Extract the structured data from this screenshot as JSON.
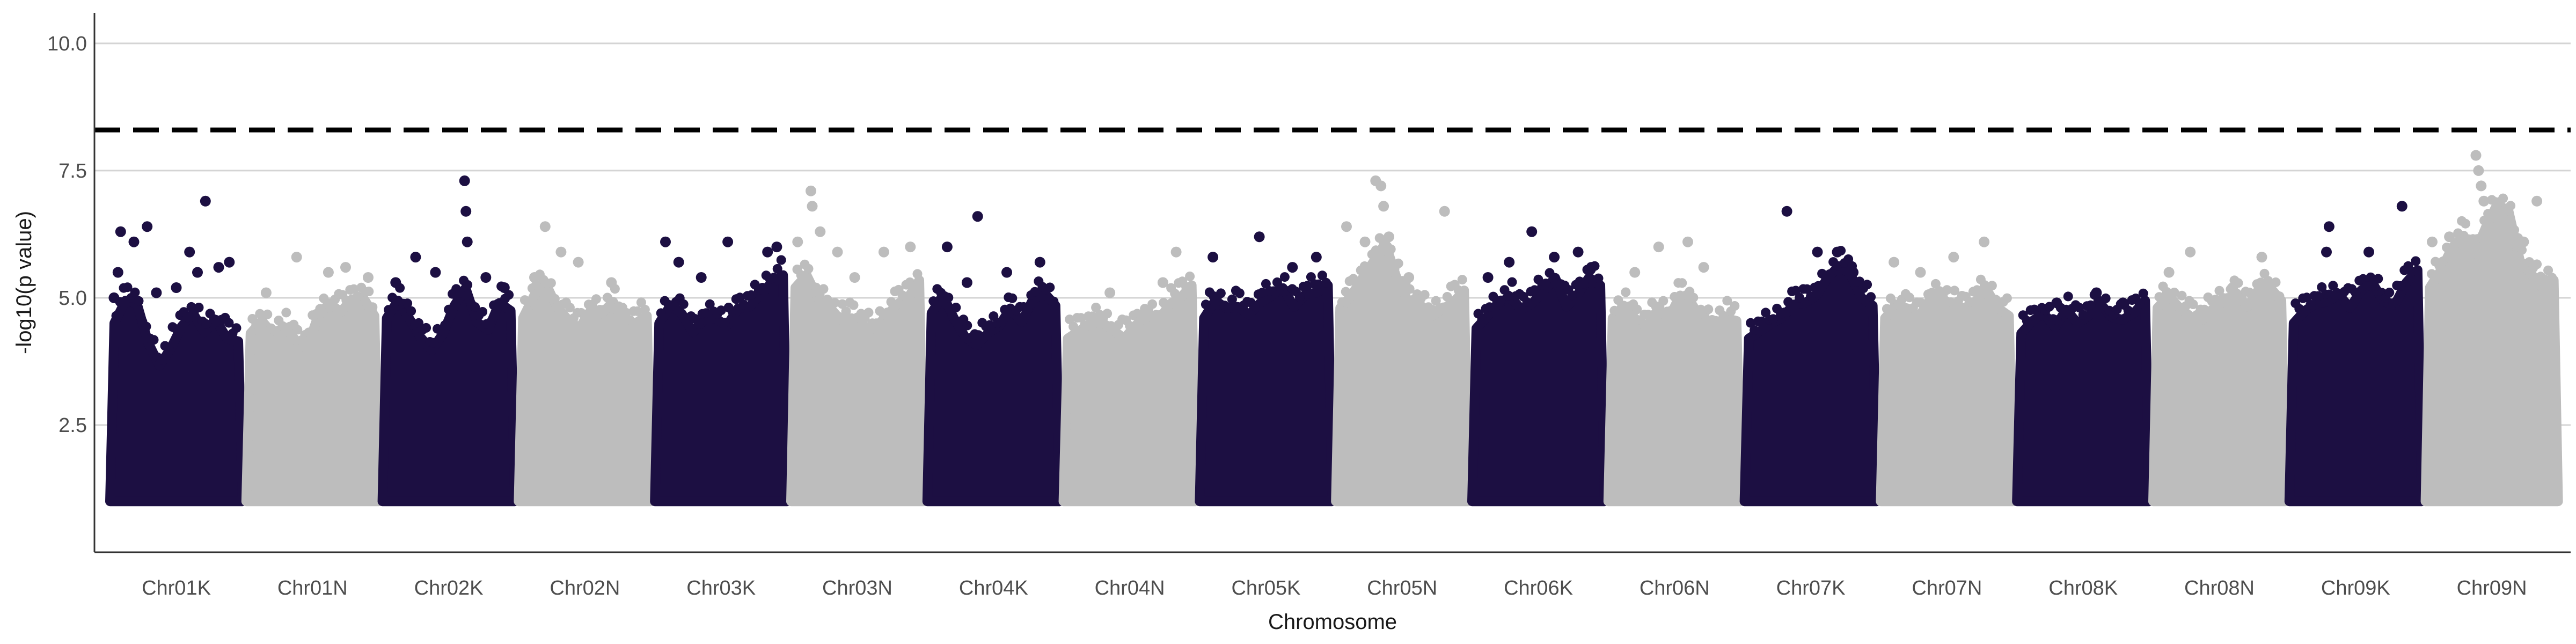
{
  "chart_data": {
    "type": "scatter",
    "title": "",
    "xlabel": "Chromosome",
    "ylabel": "-log10(p value)",
    "y_ticks": [
      2.5,
      5.0,
      7.5,
      10.0
    ],
    "y_tick_labels": [
      "2.5",
      "5.0",
      "7.5",
      "10.0"
    ],
    "ylim": [
      0,
      10.6
    ],
    "grid": "horizontal major",
    "legend": "none",
    "threshold": 8.3,
    "point_floor": 1.0,
    "colors": {
      "odd": "#1c0f42",
      "even": "#bdbdbd"
    },
    "categories": [
      "Chr01K",
      "Chr01N",
      "Chr02K",
      "Chr02N",
      "Chr03K",
      "Chr03N",
      "Chr04K",
      "Chr04N",
      "Chr05K",
      "Chr05N",
      "Chr06K",
      "Chr06N",
      "Chr07K",
      "Chr07N",
      "Chr08K",
      "Chr08N",
      "Chr09K",
      "Chr09N"
    ],
    "chromosomes": [
      {
        "name": "Chr01K",
        "color": "#1c0f42",
        "body": [
          4.5,
          4.9,
          4.8,
          4.1,
          3.6,
          4.0,
          4.4,
          4.6,
          4.3,
          4.5,
          4.2,
          4.1
        ],
        "outliers": [
          {
            "x": 0.03,
            "y": 5.0
          },
          {
            "x": 0.06,
            "y": 5.5
          },
          {
            "x": 0.08,
            "y": 6.3
          },
          {
            "x": 0.18,
            "y": 6.1
          },
          {
            "x": 0.28,
            "y": 6.4
          },
          {
            "x": 0.35,
            "y": 5.1
          },
          {
            "x": 0.5,
            "y": 5.2
          },
          {
            "x": 0.6,
            "y": 5.9
          },
          {
            "x": 0.66,
            "y": 5.5
          },
          {
            "x": 0.72,
            "y": 6.9
          },
          {
            "x": 0.82,
            "y": 5.6
          },
          {
            "x": 0.9,
            "y": 5.7
          }
        ]
      },
      {
        "name": "Chr01N",
        "color": "#bdbdbd",
        "body": [
          4.3,
          4.5,
          4.2,
          4.4,
          4.1,
          4.0,
          4.6,
          4.8,
          4.7,
          4.9,
          5.0,
          4.6
        ],
        "outliers": [
          {
            "x": 0.15,
            "y": 5.1
          },
          {
            "x": 0.38,
            "y": 5.8
          },
          {
            "x": 0.62,
            "y": 5.5
          },
          {
            "x": 0.75,
            "y": 5.6
          },
          {
            "x": 0.92,
            "y": 5.4
          }
        ]
      },
      {
        "name": "Chr02K",
        "color": "#1c0f42",
        "body": [
          4.6,
          4.9,
          4.5,
          4.2,
          3.9,
          4.3,
          4.8,
          5.1,
          4.5,
          4.3,
          4.9,
          4.7
        ],
        "outliers": [
          {
            "x": 0.1,
            "y": 5.3
          },
          {
            "x": 0.25,
            "y": 5.8
          },
          {
            "x": 0.4,
            "y": 5.5
          },
          {
            "x": 0.62,
            "y": 7.3
          },
          {
            "x": 0.63,
            "y": 6.7
          },
          {
            "x": 0.64,
            "y": 6.1
          },
          {
            "x": 0.78,
            "y": 5.4
          },
          {
            "x": 0.92,
            "y": 5.2
          }
        ]
      },
      {
        "name": "Chr02N",
        "color": "#bdbdbd",
        "body": [
          4.6,
          5.0,
          5.2,
          4.8,
          4.5,
          4.4,
          4.7,
          4.6,
          4.9,
          4.4,
          4.5,
          4.6
        ],
        "outliers": [
          {
            "x": 0.12,
            "y": 5.4
          },
          {
            "x": 0.2,
            "y": 6.4
          },
          {
            "x": 0.32,
            "y": 5.9
          },
          {
            "x": 0.45,
            "y": 5.7
          },
          {
            "x": 0.7,
            "y": 5.3
          }
        ]
      },
      {
        "name": "Chr03K",
        "color": "#1c0f42",
        "body": [
          4.5,
          4.8,
          4.6,
          4.3,
          4.5,
          4.6,
          4.4,
          4.7,
          4.8,
          5.0,
          5.3,
          5.4
        ],
        "outliers": [
          {
            "x": 0.08,
            "y": 6.1
          },
          {
            "x": 0.18,
            "y": 5.7
          },
          {
            "x": 0.35,
            "y": 5.4
          },
          {
            "x": 0.55,
            "y": 6.1
          },
          {
            "x": 0.85,
            "y": 5.9
          },
          {
            "x": 0.92,
            "y": 6.0
          }
        ]
      },
      {
        "name": "Chr03N",
        "color": "#bdbdbd",
        "body": [
          5.2,
          5.4,
          4.9,
          4.8,
          4.5,
          4.6,
          4.4,
          4.3,
          4.6,
          4.8,
          5.0,
          5.3
        ],
        "outliers": [
          {
            "x": 0.05,
            "y": 6.1
          },
          {
            "x": 0.15,
            "y": 7.1
          },
          {
            "x": 0.16,
            "y": 6.8
          },
          {
            "x": 0.22,
            "y": 6.3
          },
          {
            "x": 0.35,
            "y": 5.9
          },
          {
            "x": 0.48,
            "y": 5.4
          },
          {
            "x": 0.7,
            "y": 5.9
          },
          {
            "x": 0.9,
            "y": 6.0
          }
        ]
      },
      {
        "name": "Chr04K",
        "color": "#1c0f42",
        "body": [
          4.7,
          5.0,
          4.5,
          4.2,
          4.0,
          4.3,
          4.4,
          4.7,
          4.5,
          4.9,
          5.1,
          4.8
        ],
        "outliers": [
          {
            "x": 0.15,
            "y": 6.0
          },
          {
            "x": 0.3,
            "y": 5.3
          },
          {
            "x": 0.38,
            "y": 6.6
          },
          {
            "x": 0.6,
            "y": 5.5
          },
          {
            "x": 0.85,
            "y": 5.7
          }
        ]
      },
      {
        "name": "Chr04N",
        "color": "#bdbdbd",
        "body": [
          4.2,
          4.3,
          4.4,
          4.5,
          4.3,
          4.2,
          4.4,
          4.6,
          4.5,
          4.8,
          5.0,
          5.2
        ],
        "outliers": [
          {
            "x": 0.35,
            "y": 5.1
          },
          {
            "x": 0.75,
            "y": 5.3
          },
          {
            "x": 0.85,
            "y": 5.9
          }
        ]
      },
      {
        "name": "Chr05K",
        "color": "#1c0f42",
        "body": [
          4.6,
          4.9,
          4.7,
          4.8,
          4.6,
          4.9,
          5.0,
          5.1,
          4.8,
          5.0,
          5.1,
          5.2
        ],
        "outliers": [
          {
            "x": 0.1,
            "y": 5.8
          },
          {
            "x": 0.45,
            "y": 6.2
          },
          {
            "x": 0.7,
            "y": 5.6
          },
          {
            "x": 0.88,
            "y": 5.8
          }
        ]
      },
      {
        "name": "Chr05N",
        "color": "#bdbdbd",
        "body": [
          4.8,
          5.0,
          5.3,
          5.7,
          6.0,
          5.4,
          4.9,
          4.8,
          4.6,
          4.7,
          4.9,
          5.1
        ],
        "outliers": [
          {
            "x": 0.08,
            "y": 6.4
          },
          {
            "x": 0.22,
            "y": 6.1
          },
          {
            "x": 0.3,
            "y": 7.3
          },
          {
            "x": 0.34,
            "y": 7.2
          },
          {
            "x": 0.36,
            "y": 6.8
          },
          {
            "x": 0.4,
            "y": 6.2
          },
          {
            "x": 0.55,
            "y": 5.4
          },
          {
            "x": 0.82,
            "y": 6.7
          }
        ]
      },
      {
        "name": "Chr06K",
        "color": "#1c0f42",
        "body": [
          4.4,
          4.6,
          4.8,
          5.0,
          4.7,
          4.9,
          5.1,
          5.3,
          4.8,
          5.0,
          5.4,
          5.2
        ],
        "outliers": [
          {
            "x": 0.12,
            "y": 5.4
          },
          {
            "x": 0.28,
            "y": 5.7
          },
          {
            "x": 0.45,
            "y": 6.3
          },
          {
            "x": 0.62,
            "y": 5.8
          },
          {
            "x": 0.8,
            "y": 5.9
          },
          {
            "x": 0.9,
            "y": 5.6
          }
        ]
      },
      {
        "name": "Chr06N",
        "color": "#bdbdbd",
        "body": [
          4.6,
          4.8,
          4.5,
          4.4,
          4.7,
          4.6,
          5.0,
          4.8,
          4.5,
          4.4,
          4.6,
          4.5
        ],
        "outliers": [
          {
            "x": 0.2,
            "y": 5.5
          },
          {
            "x": 0.38,
            "y": 6.0
          },
          {
            "x": 0.6,
            "y": 6.1
          },
          {
            "x": 0.72,
            "y": 5.6
          }
        ]
      },
      {
        "name": "Chr07K",
        "color": "#1c0f42",
        "body": [
          4.2,
          4.3,
          4.4,
          4.6,
          4.8,
          4.9,
          5.0,
          5.3,
          5.6,
          5.4,
          5.0,
          4.8
        ],
        "outliers": [
          {
            "x": 0.32,
            "y": 6.7
          },
          {
            "x": 0.55,
            "y": 5.9
          },
          {
            "x": 0.7,
            "y": 5.9
          },
          {
            "x": 0.82,
            "y": 5.5
          }
        ]
      },
      {
        "name": "Chr07N",
        "color": "#bdbdbd",
        "body": [
          4.6,
          4.8,
          4.7,
          4.6,
          4.9,
          5.0,
          4.8,
          4.7,
          4.9,
          5.1,
          4.8,
          4.6
        ],
        "outliers": [
          {
            "x": 0.1,
            "y": 5.7
          },
          {
            "x": 0.3,
            "y": 5.5
          },
          {
            "x": 0.55,
            "y": 5.8
          },
          {
            "x": 0.78,
            "y": 6.1
          }
        ]
      },
      {
        "name": "Chr08K",
        "color": "#1c0f42",
        "body": [
          4.3,
          4.5,
          4.6,
          4.4,
          4.7,
          4.5,
          4.6,
          4.8,
          4.6,
          4.5,
          4.7,
          4.9
        ],
        "outliers": [
          {
            "x": 0.3,
            "y": 4.9
          },
          {
            "x": 0.6,
            "y": 5.1
          },
          {
            "x": 0.8,
            "y": 4.9
          }
        ]
      },
      {
        "name": "Chr08N",
        "color": "#bdbdbd",
        "body": [
          4.8,
          5.0,
          4.7,
          4.6,
          4.5,
          4.8,
          4.9,
          5.0,
          4.8,
          5.1,
          5.2,
          4.9
        ],
        "outliers": [
          {
            "x": 0.12,
            "y": 5.5
          },
          {
            "x": 0.28,
            "y": 5.9
          },
          {
            "x": 0.6,
            "y": 5.2
          },
          {
            "x": 0.82,
            "y": 5.8
          }
        ]
      },
      {
        "name": "Chr09K",
        "color": "#1c0f42",
        "body": [
          4.5,
          4.7,
          4.8,
          4.9,
          5.0,
          4.8,
          5.1,
          5.2,
          4.9,
          4.8,
          5.3,
          5.5
        ],
        "outliers": [
          {
            "x": 0.28,
            "y": 5.9
          },
          {
            "x": 0.3,
            "y": 6.4
          },
          {
            "x": 0.6,
            "y": 5.9
          },
          {
            "x": 0.85,
            "y": 6.8
          }
        ]
      },
      {
        "name": "Chr09N",
        "color": "#bdbdbd",
        "body": [
          5.2,
          5.5,
          5.9,
          6.2,
          5.8,
          6.4,
          6.8,
          6.6,
          5.7,
          5.4,
          5.2,
          5.3
        ],
        "outliers": [
          {
            "x": 0.05,
            "y": 6.1
          },
          {
            "x": 0.18,
            "y": 6.2
          },
          {
            "x": 0.38,
            "y": 7.8
          },
          {
            "x": 0.4,
            "y": 7.5
          },
          {
            "x": 0.42,
            "y": 7.2
          },
          {
            "x": 0.44,
            "y": 6.9
          },
          {
            "x": 0.5,
            "y": 6.3
          },
          {
            "x": 0.74,
            "y": 6.1
          },
          {
            "x": 0.84,
            "y": 6.9
          }
        ]
      }
    ]
  }
}
